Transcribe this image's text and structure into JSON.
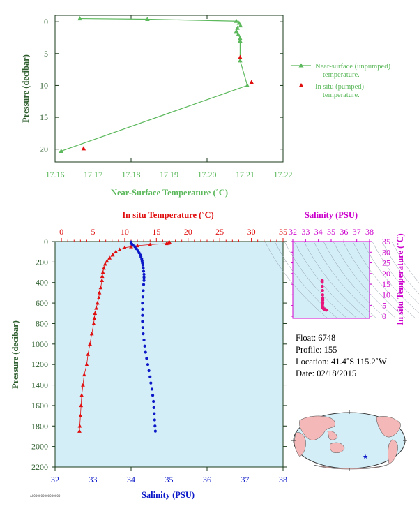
{
  "colors": {
    "green": "#5bb85b",
    "axis_green": "#2e5e2e",
    "red": "#e01010",
    "blue": "#0b18c8",
    "magenta": "#cc00cc",
    "plot_bg": "#d4eef8",
    "land": "#f4b8b8",
    "dark_axis": "#1a3a1a"
  },
  "top_chart": {
    "xlabel": "Near-Surface Temperature (˚C)",
    "ylabel": "Pressure (decibar)",
    "legend": {
      "unpumped_line1": "Near-surface (unpumped)",
      "unpumped_line2": "temperature.",
      "pumped_line1": "In situ (pumped)",
      "pumped_line2": "temperature."
    }
  },
  "bottom_chart": {
    "top_xlabel": "In situ Temperature (˚C)",
    "bottom_xlabel": "Salinity (PSU)",
    "ylabel": "Pressure (decibar)"
  },
  "ts_chart": {
    "title": "Salinity (PSU)",
    "ylabel": "In situ Temperature (˚C)"
  },
  "info": {
    "float": "Float:  6748",
    "profile": "Profile:  155",
    "location": "Location:  41.4˚S  115.2˚W",
    "date": "Date:  02/18/2015"
  },
  "footer_tag": "A0000000000000000",
  "map": {
    "marker": "star",
    "marker_location": "41.4˚S 115.2˚W"
  },
  "chart_data": [
    {
      "type": "line",
      "name": "near-surface-temperature",
      "xlabel": "Near-Surface Temperature (˚C)",
      "ylabel": "Pressure (decibar)",
      "xlim": [
        17.16,
        17.22
      ],
      "ylim": [
        22,
        -1
      ],
      "xticks": [
        17.16,
        17.17,
        17.18,
        17.19,
        17.2,
        17.21,
        17.22
      ],
      "xtick_labels": [
        "17.16",
        "17.17",
        "17.18",
        "17.19",
        "17.20",
        "17.21",
        "17.22"
      ],
      "yticks": [
        0,
        5,
        10,
        15,
        20
      ],
      "grid": false,
      "legend_position": "right",
      "series": [
        {
          "name": "Near-surface (unpumped) temperature.",
          "color": "#5bb85b",
          "marker": "triangle",
          "line": true,
          "points": [
            [
              17.1665,
              -0.5
            ],
            [
              17.1843,
              -0.4
            ],
            [
              17.2077,
              -0.1
            ],
            [
              17.2084,
              0.2
            ],
            [
              17.2088,
              0.6
            ],
            [
              17.208,
              1.0
            ],
            [
              17.2077,
              1.5
            ],
            [
              17.2082,
              2.0
            ],
            [
              17.2087,
              2.6
            ],
            [
              17.2087,
              3.0
            ],
            [
              17.2087,
              6.1
            ],
            [
              17.2106,
              10.0
            ],
            [
              17.1616,
              20.3
            ]
          ]
        },
        {
          "name": "In situ (pumped) temperature.",
          "color": "#e01010",
          "marker": "triangle",
          "line": false,
          "points": [
            [
              17.2087,
              5.6
            ],
            [
              17.2117,
              9.5
            ],
            [
              17.1675,
              19.9
            ]
          ]
        }
      ]
    },
    {
      "type": "scatter",
      "name": "profile",
      "ylabel": "Pressure (decibar)",
      "ylim": [
        2200,
        0
      ],
      "yticks": [
        0,
        200,
        400,
        600,
        800,
        1000,
        1200,
        1400,
        1600,
        1800,
        2000,
        2200
      ],
      "top_axis": {
        "label": "In situ Temperature (˚C)",
        "lim": [
          -1,
          35
        ],
        "ticks": [
          0,
          5,
          10,
          15,
          20,
          25,
          30,
          35
        ]
      },
      "bottom_axis": {
        "label": "Salinity (PSU)",
        "lim": [
          32,
          38
        ],
        "ticks": [
          32,
          33,
          34,
          35,
          36,
          37,
          38
        ]
      },
      "grid": false,
      "series": [
        {
          "name": "In situ Temperature (˚C)",
          "axis": "top",
          "color": "#e01010",
          "marker": "triangle",
          "points": [
            [
              17.0,
              5
            ],
            [
              17.1,
              10
            ],
            [
              16.9,
              15
            ],
            [
              16.6,
              20
            ],
            [
              14.0,
              30
            ],
            [
              12.0,
              40
            ],
            [
              11.0,
              50
            ],
            [
              10.0,
              60
            ],
            [
              9.2,
              80
            ],
            [
              8.6,
              100
            ],
            [
              8.1,
              130
            ],
            [
              7.6,
              160
            ],
            [
              7.2,
              190
            ],
            [
              6.9,
              220
            ],
            [
              6.7,
              260
            ],
            [
              6.55,
              300
            ],
            [
              6.45,
              340
            ],
            [
              6.4,
              380
            ],
            [
              6.2,
              450
            ],
            [
              6.0,
              500
            ],
            [
              5.9,
              550
            ],
            [
              5.7,
              600
            ],
            [
              5.5,
              650
            ],
            [
              5.3,
              700
            ],
            [
              5.2,
              750
            ],
            [
              5.1,
              800
            ],
            [
              4.8,
              900
            ],
            [
              4.5,
              1000
            ],
            [
              4.2,
              1100
            ],
            [
              4.0,
              1200
            ],
            [
              3.6,
              1300
            ],
            [
              3.4,
              1400
            ],
            [
              3.2,
              1500
            ],
            [
              3.1,
              1600
            ],
            [
              3.0,
              1700
            ],
            [
              2.9,
              1800
            ],
            [
              2.85,
              1850
            ]
          ]
        },
        {
          "name": "Salinity (PSU)",
          "axis": "bottom",
          "color": "#0b18c8",
          "marker": "circle",
          "points": [
            [
              34.0,
              5
            ],
            [
              34.0,
              15
            ],
            [
              34.02,
              25
            ],
            [
              34.05,
              35
            ],
            [
              34.1,
              50
            ],
            [
              34.14,
              70
            ],
            [
              34.18,
              90
            ],
            [
              34.21,
              110
            ],
            [
              34.24,
              130
            ],
            [
              34.26,
              150
            ],
            [
              34.28,
              170
            ],
            [
              34.29,
              190
            ],
            [
              34.3,
              210
            ],
            [
              34.31,
              230
            ],
            [
              34.32,
              260
            ],
            [
              34.33,
              290
            ],
            [
              34.34,
              320
            ],
            [
              34.34,
              350
            ],
            [
              34.34,
              380
            ],
            [
              34.33,
              420
            ],
            [
              34.32,
              480
            ],
            [
              34.31,
              540
            ],
            [
              34.3,
              600
            ],
            [
              34.3,
              660
            ],
            [
              34.3,
              720
            ],
            [
              34.3,
              780
            ],
            [
              34.31,
              840
            ],
            [
              34.32,
              900
            ],
            [
              34.34,
              960
            ],
            [
              34.36,
              1020
            ],
            [
              34.38,
              1080
            ],
            [
              34.41,
              1140
            ],
            [
              34.44,
              1200
            ],
            [
              34.47,
              1260
            ],
            [
              34.5,
              1320
            ],
            [
              34.52,
              1380
            ],
            [
              34.55,
              1440
            ],
            [
              34.57,
              1500
            ],
            [
              34.59,
              1560
            ],
            [
              34.6,
              1620
            ],
            [
              34.61,
              1680
            ],
            [
              34.62,
              1740
            ],
            [
              34.63,
              1800
            ],
            [
              34.64,
              1850
            ]
          ]
        }
      ]
    },
    {
      "type": "scatter",
      "name": "temperature-salinity",
      "xlabel": "Salinity (PSU)",
      "ylabel": "In situ Temperature (˚C)",
      "xlim": [
        32,
        38
      ],
      "ylim": [
        -1,
        35
      ],
      "xticks": [
        32,
        33,
        34,
        35,
        36,
        37,
        38
      ],
      "yticks": [
        0,
        5,
        10,
        15,
        20,
        25,
        30,
        35
      ],
      "grid": false,
      "series": [
        {
          "name": "T-S",
          "color": "#e8157a",
          "marker": "circle",
          "points": [
            [
              34.3,
              16.8
            ],
            [
              34.3,
              16.0
            ],
            [
              34.31,
              14.0
            ],
            [
              34.32,
              12.0
            ],
            [
              34.33,
              10.0
            ],
            [
              34.34,
              8.5
            ],
            [
              34.34,
              7.5
            ],
            [
              34.34,
              6.5
            ],
            [
              34.33,
              6.0
            ],
            [
              34.32,
              5.5
            ],
            [
              34.31,
              5.0
            ],
            [
              34.31,
              4.5
            ],
            [
              34.34,
              4.0
            ],
            [
              34.4,
              3.6
            ],
            [
              34.47,
              3.3
            ],
            [
              34.55,
              3.0
            ],
            [
              34.62,
              2.9
            ]
          ]
        }
      ]
    }
  ]
}
